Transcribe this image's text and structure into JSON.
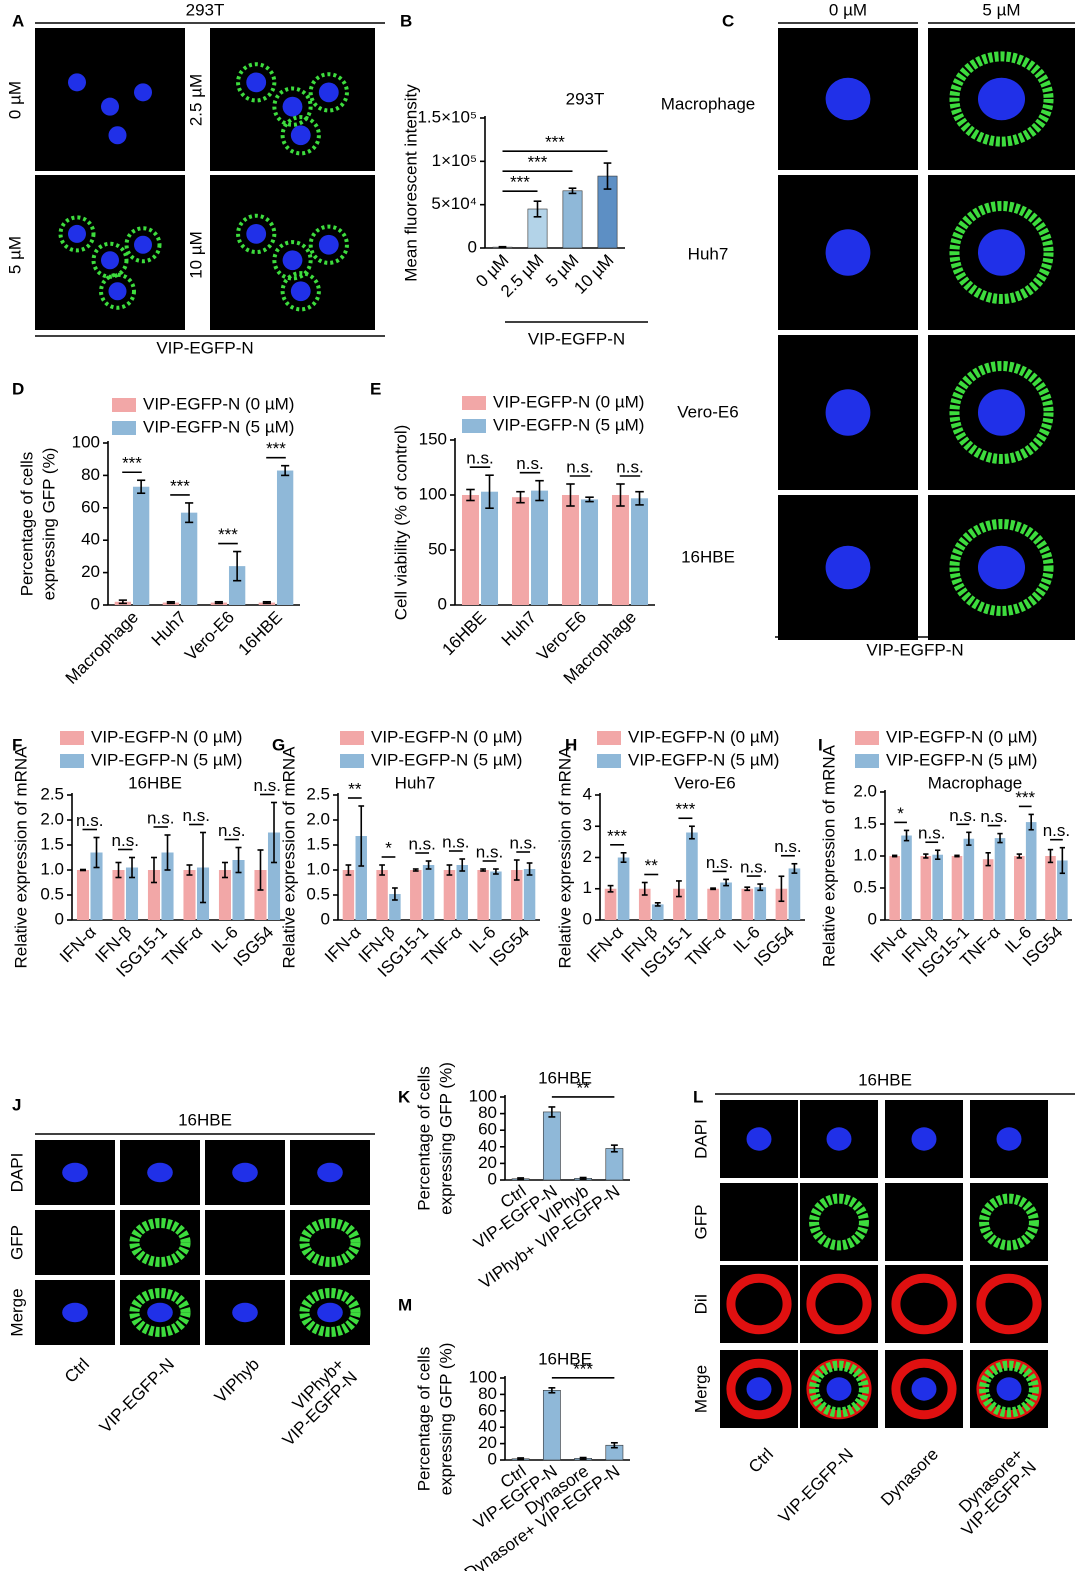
{
  "figures": [
    {
      "panel": "A",
      "title": "293T",
      "cell_labels": [
        "0 µM",
        "2.5 µM",
        "5 µM",
        "10 µM"
      ],
      "caption": "VIP-EGFP-N"
    },
    {
      "panel": "C",
      "column_labels": [
        "0 µM",
        "5 µM"
      ],
      "row_labels": [
        "Macrophage",
        "Huh7",
        "Vero-E6",
        "16HBE"
      ],
      "caption": "VIP-EGFP-N"
    },
    {
      "panel": "J",
      "title": "16HBE",
      "row_labels": [
        "DAPI",
        "GFP",
        "Merge"
      ],
      "column_labels": [
        [
          "Ctrl"
        ],
        [
          "VIP-EGFP-N"
        ],
        [
          "VIPhyb"
        ],
        [
          "VIPhyb+",
          "VIP-EGFP-N"
        ]
      ]
    },
    {
      "panel": "L",
      "title": "16HBE",
      "row_labels": [
        "DAPI",
        "GFP",
        "DiI",
        "Merge"
      ],
      "column_labels": [
        [
          "Ctrl"
        ],
        [
          "VIP-EGFP-N"
        ],
        [
          "Dynasore"
        ],
        [
          "Dynasore+",
          "VIP-EGFP-N"
        ]
      ]
    }
  ],
  "chart_data": [
    {
      "panel": "B",
      "type": "bar",
      "title": "293T",
      "ylabel": [
        "Mean fluorescent intensity"
      ],
      "xlabel": "VIP-EGFP-N",
      "categories": [
        "0 µM",
        "2.5 µM",
        "5 µM",
        "10 µM"
      ],
      "values": [
        1000,
        45000,
        66000,
        83000
      ],
      "errors": [
        500,
        9000,
        3000,
        15000
      ],
      "colors": [
        "#d6e7f1",
        "#b3d3e8",
        "#8fb8d8",
        "#5d8fc4"
      ],
      "significance": [
        null,
        "***",
        "***",
        "***"
      ],
      "ylim": [
        0,
        150000
      ],
      "yticks": [
        0,
        {
          "value": 50000,
          "label": "5×10⁴"
        },
        {
          "value": 100000,
          "label": "1×10⁵"
        },
        {
          "value": 150000,
          "label": "1.5×10⁵"
        }
      ]
    },
    {
      "panel": "D",
      "type": "bar",
      "ylabel": [
        "Percentage of cells",
        "expressing GFP (%)"
      ],
      "categories": [
        "Macrophage",
        "Huh7",
        "Vero-E6",
        "16HBE"
      ],
      "series": [
        {
          "name": "VIP-EGFP-N (0 µM)",
          "color": "#f2a7a7",
          "values": [
            2,
            1.5,
            1.5,
            1.5
          ],
          "errors": [
            1,
            0.5,
            0.5,
            0.5
          ]
        },
        {
          "name": "VIP-EGFP-N (5 µM)",
          "color": "#8fb8d8",
          "values": [
            73,
            57,
            24,
            83
          ],
          "errors": [
            4,
            6,
            9,
            3
          ]
        }
      ],
      "significance": [
        "***",
        "***",
        "***",
        "***"
      ],
      "ylim": [
        0,
        100
      ],
      "yticks": [
        0,
        20,
        40,
        60,
        80,
        100
      ]
    },
    {
      "panel": "E",
      "type": "bar",
      "ylabel": [
        "Cell viability (% of control)"
      ],
      "categories": [
        "16HBE",
        "Huh7",
        "Vero-E6",
        "Macrophage"
      ],
      "series": [
        {
          "name": "VIP-EGFP-N (0 µM)",
          "color": "#f2a7a7",
          "values": [
            100,
            98,
            100,
            100
          ],
          "errors": [
            5,
            5,
            10,
            10
          ]
        },
        {
          "name": "VIP-EGFP-N (5 µM)",
          "color": "#8fb8d8",
          "values": [
            103,
            104,
            96,
            97
          ],
          "errors": [
            15,
            9,
            2,
            6
          ]
        }
      ],
      "significance": [
        "n.s.",
        "n.s.",
        "n.s.",
        "n.s."
      ],
      "ylim": [
        0,
        150
      ],
      "yticks": [
        0,
        50,
        100,
        150
      ]
    },
    {
      "panel": "F",
      "type": "bar",
      "title": "16HBE",
      "ylabel": [
        "Relative expression of mRNA"
      ],
      "categories": [
        "IFN-α",
        "IFN-β",
        "ISG15-1",
        "TNF-α",
        "IL-6",
        "ISG54"
      ],
      "series": [
        {
          "name": "VIP-EGFP-N (0 µM)",
          "color": "#f2a7a7",
          "values": [
            1.0,
            1.0,
            1.0,
            1.0,
            1.0,
            1.0
          ],
          "errors": [
            0.01,
            0.15,
            0.25,
            0.1,
            0.15,
            0.4
          ]
        },
        {
          "name": "VIP-EGFP-N (5 µM)",
          "color": "#8fb8d8",
          "values": [
            1.35,
            1.05,
            1.35,
            1.05,
            1.2,
            1.75
          ],
          "errors": [
            0.3,
            0.2,
            0.35,
            0.7,
            0.25,
            0.6
          ]
        }
      ],
      "significance": [
        "n.s.",
        "n.s.",
        "n.s.",
        "n.s.",
        "n.s.",
        "n.s."
      ],
      "ylim": [
        0,
        2.5
      ],
      "yticks": [
        0,
        0.5,
        {
          "value": 1,
          "label": "1.0"
        },
        1.5,
        {
          "value": 2,
          "label": "2.0"
        },
        2.5
      ]
    },
    {
      "panel": "G",
      "type": "bar",
      "title": "Huh7",
      "ylabel": [
        "Relative expression of mRNA"
      ],
      "categories": [
        "IFN-α",
        "IFN-β",
        "ISG15-1",
        "TNF-α",
        "IL-6",
        "ISG54"
      ],
      "series": [
        {
          "name": "VIP-EGFP-N (0 µM)",
          "color": "#f2a7a7",
          "values": [
            1.0,
            1.0,
            1.0,
            1.0,
            1.0,
            1.0
          ],
          "errors": [
            0.1,
            0.1,
            0.02,
            0.1,
            0.02,
            0.2
          ]
        },
        {
          "name": "VIP-EGFP-N (5 µM)",
          "color": "#8fb8d8",
          "values": [
            1.68,
            0.52,
            1.1,
            1.1,
            0.97,
            1.02
          ],
          "errors": [
            0.6,
            0.12,
            0.08,
            0.12,
            0.05,
            0.12
          ]
        }
      ],
      "significance": [
        "**",
        "*",
        "n.s.",
        "n.s.",
        "n.s.",
        "n.s."
      ],
      "ylim": [
        0,
        2.5
      ],
      "yticks": [
        0,
        0.5,
        {
          "value": 1,
          "label": "1.0"
        },
        1.5,
        {
          "value": 2,
          "label": "2.0"
        },
        2.5
      ]
    },
    {
      "panel": "H",
      "type": "bar",
      "title": "Vero-E6",
      "ylabel": [
        "Relative expression of mRNA"
      ],
      "categories": [
        "IFN-α",
        "IFN-β",
        "ISG15-1",
        "TNF-α",
        "IL-6",
        "ISG54"
      ],
      "series": [
        {
          "name": "VIP-EGFP-N (0 µM)",
          "color": "#f2a7a7",
          "values": [
            1.0,
            1.0,
            1.0,
            1.0,
            1.0,
            1.0
          ],
          "errors": [
            0.1,
            0.2,
            0.25,
            0.02,
            0.05,
            0.4
          ]
        },
        {
          "name": "VIP-EGFP-N (5 µM)",
          "color": "#8fb8d8",
          "values": [
            2.0,
            0.5,
            2.8,
            1.2,
            1.05,
            1.65
          ],
          "errors": [
            0.15,
            0.05,
            0.2,
            0.1,
            0.1,
            0.15
          ]
        }
      ],
      "significance": [
        "***",
        "**",
        "***",
        "n.s.",
        "n.s.",
        "n.s."
      ],
      "ylim": [
        0,
        4
      ],
      "yticks": [
        0,
        1,
        2,
        3,
        4
      ]
    },
    {
      "panel": "I",
      "type": "bar",
      "title": "Macrophage",
      "ylabel": [
        "Relative expression of mRNA"
      ],
      "categories": [
        "IFN-α",
        "IFN-β",
        "ISG15-1",
        "TNF-α",
        "IL-6",
        "ISG54"
      ],
      "series": [
        {
          "name": "VIP-EGFP-N (0 µM)",
          "color": "#f2a7a7",
          "values": [
            1.0,
            1.0,
            1.0,
            0.95,
            1.0,
            1.0
          ],
          "errors": [
            0.01,
            0.03,
            0.01,
            0.1,
            0.03,
            0.1
          ]
        },
        {
          "name": "VIP-EGFP-N (5 µM)",
          "color": "#8fb8d8",
          "values": [
            1.32,
            1.02,
            1.27,
            1.28,
            1.53,
            0.93
          ],
          "errors": [
            0.08,
            0.07,
            0.1,
            0.07,
            0.12,
            0.2
          ]
        }
      ],
      "significance": [
        "*",
        "n.s.",
        "n.s.",
        "n.s.",
        "***",
        "n.s."
      ],
      "ylim": [
        0,
        2
      ],
      "yticks": [
        0,
        0.5,
        {
          "value": 1,
          "label": "1.0"
        },
        1.5,
        {
          "value": 2,
          "label": "2.0"
        }
      ]
    },
    {
      "panel": "K",
      "type": "bar",
      "title": "16HBE",
      "ylabel": [
        "Percentage of cells",
        "expressing GFP (%)"
      ],
      "categories": [
        "Ctrl",
        "VIP-EGFP-N",
        "VIPhyb",
        "VIPhyb+ VIP-EGFP-N"
      ],
      "values": [
        1.5,
        82,
        2,
        38
      ],
      "errors": [
        1,
        6,
        1,
        4
      ],
      "color": "#8fb8d8",
      "significance": [
        null,
        null,
        null,
        "**"
      ],
      "ylim": [
        0,
        100
      ],
      "yticks": [
        0,
        20,
        40,
        60,
        80,
        100
      ]
    },
    {
      "panel": "M",
      "type": "bar",
      "title": "16HBE",
      "ylabel": [
        "Percentage of cells",
        "expressing GFP (%)"
      ],
      "categories": [
        "Ctrl",
        "VIP-EGFP-N",
        "Dynasore",
        "Dynasore+ VIP-EGFP-N"
      ],
      "values": [
        1.5,
        85,
        2,
        18
      ],
      "errors": [
        1,
        3,
        1,
        3
      ],
      "color": "#8fb8d8",
      "significance": [
        null,
        null,
        null,
        "***"
      ],
      "ylim": [
        0,
        100
      ],
      "yticks": [
        0,
        20,
        40,
        60,
        80,
        100
      ]
    }
  ]
}
